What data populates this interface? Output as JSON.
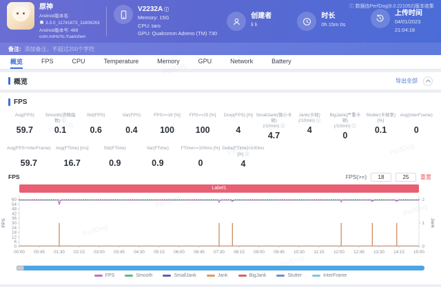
{
  "watermark": "PerfDog",
  "header": {
    "app_title": "原神",
    "android_version_label": "Android版本名:",
    "android_version": "3.3.0_11741873_11806263",
    "android_build": "Android版本号: 489",
    "package": "com.miHoYo.Yuanshen",
    "device_model": "V2232A",
    "device_memory": "Memory: 15G",
    "device_cpu": "CPU: taro",
    "device_gpu": "GPU: Qualcomm Adreno (TM) 730",
    "creator_label": "创建者",
    "creator_value": "li li",
    "duration_label": "时长",
    "duration_value": "0h 15m 0s",
    "upload_label": "上传时间",
    "upload_value": "04/01/2023 21:04:18",
    "collect_note": "ⓘ 数据由PerfDog(8.0.221052)版本收集"
  },
  "note_bar": {
    "label": "备注:",
    "placeholder": "添加备注，不超过200个字符"
  },
  "tabs": [
    {
      "label": "概览",
      "active": true
    },
    {
      "label": "FPS",
      "active": false
    },
    {
      "label": "CPU",
      "active": false
    },
    {
      "label": "Temperature",
      "active": false
    },
    {
      "label": "Memory",
      "active": false
    },
    {
      "label": "GPU",
      "active": false
    },
    {
      "label": "Network",
      "active": false
    },
    {
      "label": "Battery",
      "active": false
    }
  ],
  "overview_section": {
    "title": "概览",
    "export_label": "导出全部"
  },
  "fps_section": {
    "title": "FPS",
    "chart_title": "FPS",
    "stats_row1": [
      {
        "label": "Avg(FPS)",
        "value": "59.7"
      },
      {
        "label": "Smooth(流畅指数) ⓘ",
        "value": "0.1"
      },
      {
        "label": "Std(FPS)",
        "value": "0.6"
      },
      {
        "label": "Var(FPS)",
        "value": "0.4"
      },
      {
        "label": "FPS>=18 [%]",
        "value": "100"
      },
      {
        "label": "FPS>=25 [%]",
        "value": "100"
      },
      {
        "label": "Drop(FPS) [/h]",
        "value": "4"
      },
      {
        "label": "SmallJank(微小卡顿)\n(/10min) ⓘ",
        "value": "4.7"
      },
      {
        "label": "Jank(卡顿)\n(/10min) ⓘ",
        "value": "4"
      },
      {
        "label": "BigJank(严重卡顿)\n(/10min) ⓘ",
        "value": "0"
      },
      {
        "label": "Stutter(卡顿率) [%]",
        "value": "0.1"
      },
      {
        "label": "Avg(InterFrame)",
        "value": "0"
      }
    ],
    "stats_row2": [
      {
        "label": "Avg(FPS+InterFrame)",
        "value": "59.7"
      },
      {
        "label": "Avg(FTime) [ms]",
        "value": "16.7"
      },
      {
        "label": "Std(FTime)",
        "value": "0.9"
      },
      {
        "label": "Var(FTime)",
        "value": "0.9"
      },
      {
        "label": "FTime>=100ms [%]",
        "value": "0"
      },
      {
        "label": "Delta(FTime)>100ms [/h] ⓘ",
        "value": "4"
      }
    ],
    "controls": {
      "label": "FPS(>=)",
      "threshold1": "18",
      "threshold2": "25",
      "reset_label": "重置"
    },
    "region_label": "Label1"
  },
  "chart_data": {
    "type": "line",
    "title": "FPS over time",
    "x_axis": {
      "range_seconds": [
        0,
        900
      ],
      "ticks": [
        "00:00",
        "00:45",
        "01:30",
        "02:15",
        "03:00",
        "03:45",
        "04:30",
        "05:15",
        "06:00",
        "06:45",
        "07:30",
        "08:15",
        "09:00",
        "09:45",
        "10:30",
        "11:15",
        "12:00",
        "12:45",
        "13:30",
        "14:15",
        "15:00"
      ]
    },
    "y_left": {
      "label": "FPS",
      "ticks": [
        0,
        6,
        12,
        18,
        24,
        30,
        36,
        42,
        48,
        54,
        60
      ],
      "lim": [
        0,
        66
      ]
    },
    "y_right": {
      "label": "Jank",
      "ticks": [
        0,
        1,
        2
      ],
      "lim": [
        0,
        2
      ]
    },
    "grid": false,
    "legend_position": "bottom",
    "series": [
      {
        "name": "Smooth",
        "axis": "left",
        "color": "#5bb87d",
        "style": "solid",
        "baseline": 59.2,
        "dips": []
      },
      {
        "name": "FPS",
        "axis": "left",
        "color": "#bb55bb",
        "style": "dotted",
        "baseline": 59.7,
        "dips": [
          {
            "t_seconds": 90,
            "value": 54
          },
          {
            "t_seconds": 450,
            "value": 57
          },
          {
            "t_seconds": 480,
            "value": 57.5
          },
          {
            "t_seconds": 725,
            "value": 57.5
          },
          {
            "t_seconds": 795,
            "value": 57.5
          },
          {
            "t_seconds": 850,
            "value": 57.5
          }
        ]
      },
      {
        "name": "Jank",
        "axis": "right",
        "color": "#cd8a5c",
        "style": "solid",
        "baseline": 0,
        "events": [
          {
            "t_seconds": 90,
            "value": 1
          },
          {
            "t_seconds": 450,
            "value": 1
          },
          {
            "t_seconds": 480,
            "value": 1
          },
          {
            "t_seconds": 725,
            "value": 1
          },
          {
            "t_seconds": 795,
            "value": 1
          },
          {
            "t_seconds": 850,
            "value": 1
          }
        ]
      }
    ],
    "legend": [
      {
        "name": "FPS",
        "color": "#c869c8"
      },
      {
        "name": "Smooth",
        "color": "#5bb87d"
      },
      {
        "name": "SmallJank",
        "color": "#5b5bb8"
      },
      {
        "name": "Jank",
        "color": "#e0985e"
      },
      {
        "name": "BigJank",
        "color": "#d95f5f"
      },
      {
        "name": "Stutter",
        "color": "#5f8fd9"
      },
      {
        "name": "InterFrame",
        "color": "#72c8e8"
      }
    ]
  }
}
